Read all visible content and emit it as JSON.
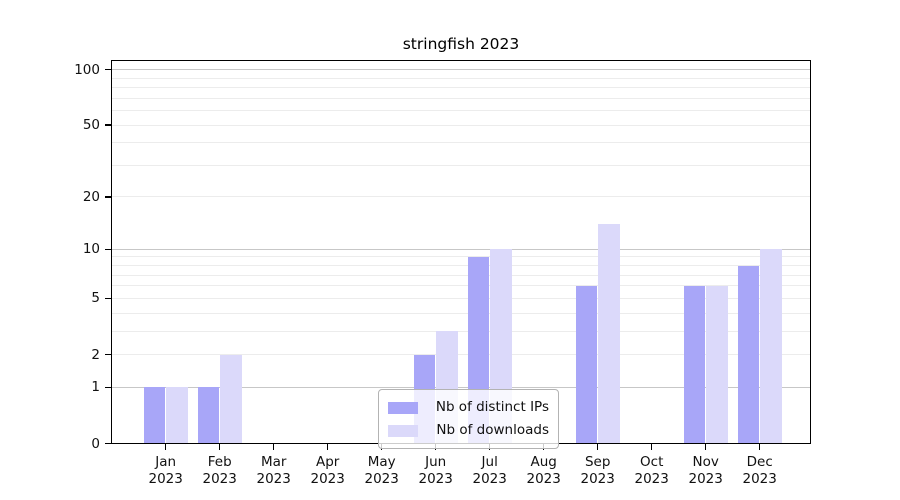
{
  "chart_data": {
    "type": "bar",
    "title": "stringfish 2023",
    "categories": [
      "Jan",
      "Feb",
      "Mar",
      "Apr",
      "May",
      "Jun",
      "Jul",
      "Aug",
      "Sep",
      "Oct",
      "Nov",
      "Dec"
    ],
    "category_year": "2023",
    "series": [
      {
        "name": "Nb of distinct IPs",
        "color": "#a8a6f8",
        "values": [
          1,
          1,
          0,
          0,
          0,
          2,
          9,
          0,
          6,
          0,
          6,
          8
        ]
      },
      {
        "name": "Nb of downloads",
        "color": "#dbd9fa",
        "values": [
          1,
          2,
          0,
          0,
          0,
          3,
          10,
          0,
          14,
          0,
          6,
          10
        ]
      }
    ],
    "y_axis": {
      "scale": "log1p",
      "tick_labels": [
        100,
        50,
        20,
        10,
        5,
        2,
        1,
        0
      ],
      "major_gridlines": [
        100,
        10,
        1
      ],
      "minor_gridlines": [
        2,
        3,
        4,
        5,
        6,
        7,
        8,
        9,
        20,
        30,
        40,
        50,
        60,
        70,
        80,
        90
      ],
      "range": [
        0,
        110
      ]
    },
    "xlabel": "",
    "ylabel": "",
    "legend": {
      "position": "bottom-center"
    },
    "grid": true,
    "colors": {
      "major_grid": "#c7c7c7",
      "minor_grid": "#ececec",
      "spine": "#000000"
    }
  }
}
